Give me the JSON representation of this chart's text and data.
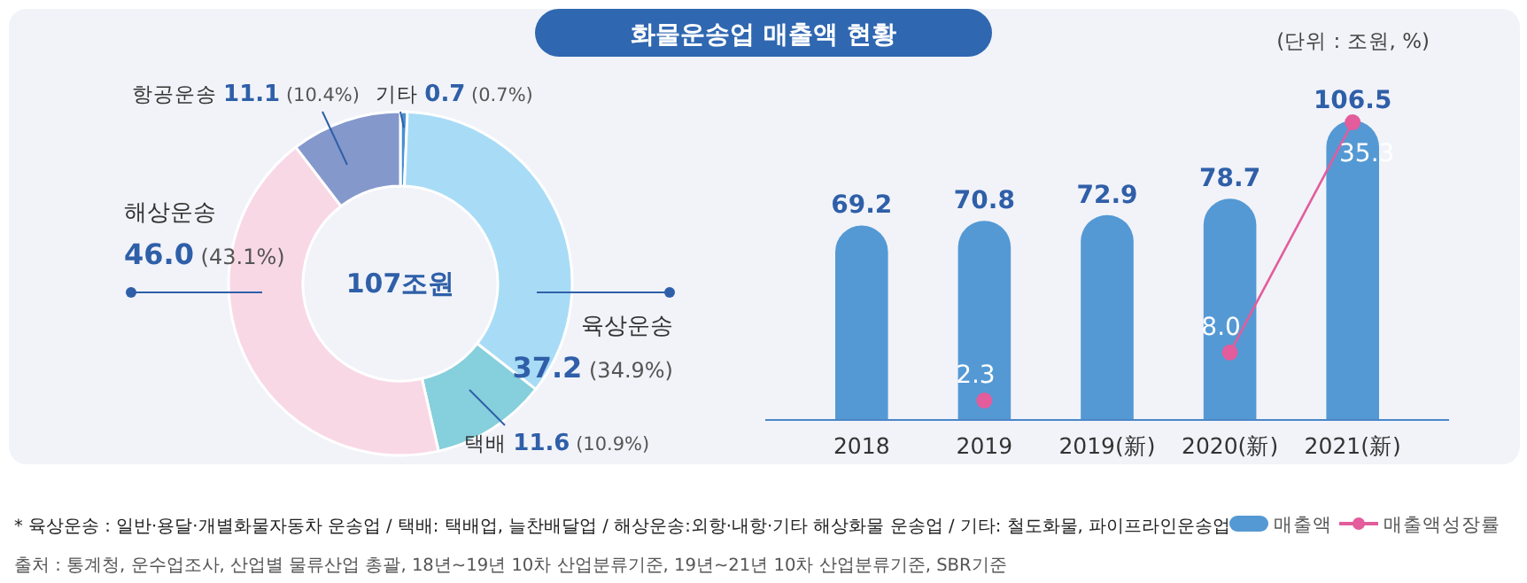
{
  "chart_data": [
    {
      "type": "donut",
      "title": "화물운송업 매출액 현황",
      "categories": [
        "기타",
        "육상운송",
        "택배",
        "해상운송",
        "항공운송"
      ],
      "values": [
        0.7,
        37.2,
        11.6,
        46.0,
        11.1
      ],
      "colors": [
        "#4a8fd0",
        "#a8dcf6",
        "#86cfdc",
        "#f9d8e5",
        "#8498cc"
      ],
      "value_labels": [
        "0.7 (0.7%)",
        "37.2 (34.9%)",
        "11.6 (10.9%)",
        "46.0 (43.1%)",
        "11.1 (10.4%)"
      ],
      "annotations": [
        "107조원"
      ]
    },
    {
      "type": "bar",
      "subtitle": "(단위 : 조원, %)",
      "categories": [
        "2018",
        "2019",
        "2019(新)",
        "2020(新)",
        "2021(新)"
      ],
      "series": [
        {
          "name": "매출액",
          "color": "#5499d4",
          "values": [
            69.2,
            70.8,
            72.9,
            78.7,
            106.5
          ]
        },
        {
          "name": "매출액성장률",
          "type": "line",
          "axis": "y2",
          "color": "#e35c9c",
          "values": [
            null,
            2.3,
            null,
            8.0,
            35.3
          ],
          "value_labels": [
            null,
            "2.3",
            null,
            "8.0",
            "35.3"
          ]
        }
      ],
      "tick_labels": "x",
      "data_labels": true,
      "legend": "bottom right",
      "marker": "circle",
      "annotations": [
        "* 육상운송 : 일반·용달·개별화물자동차 운송업 / 택배: 택배업, 늘찬배달업 / 해상운송:외항·내항·기타 해상화물 운송업 / 기타: 철도화물, 파이프라인운송업",
        "출처 : 통계청, 운수업조사, 산업별 물류산업 총괄, 18년~19년 10차 산업분류기준, 19년~21년 10차 산업분류기준, SBR기준"
      ]
    }
  ]
}
